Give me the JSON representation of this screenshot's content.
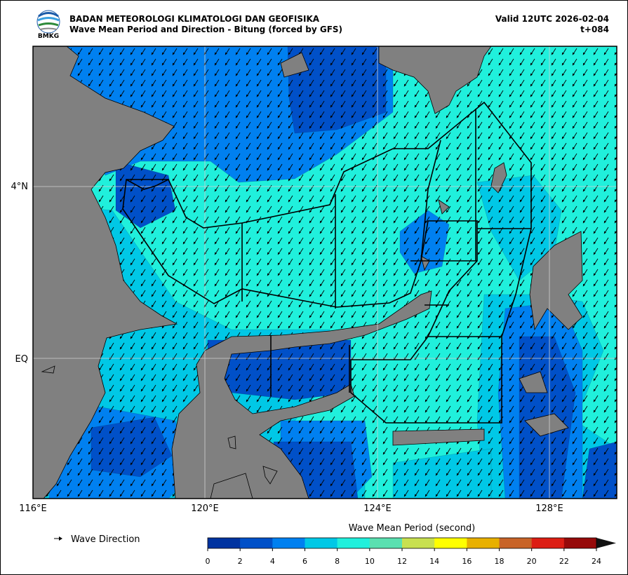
{
  "header": {
    "logo_text": "BMKG",
    "organization": "BADAN METEOROLOGI KLIMATOLOGI DAN GEOFISIKA",
    "title": "Wave Mean Period and Direction - Bitung (forced by GFS)",
    "valid": "Valid 12UTC 2026-02-04",
    "lead_time": "t+084"
  },
  "map": {
    "lat_labels": [
      "4°N",
      "EQ"
    ],
    "lon_labels": [
      "116°E",
      "120°E",
      "124°E",
      "128°E"
    ]
  },
  "legend": {
    "arrow_label": "Wave Direction"
  },
  "colorbar": {
    "title": "Wave Mean Period (second)",
    "ticks": [
      0,
      2,
      4,
      6,
      8,
      10,
      12,
      14,
      16,
      18,
      20,
      22,
      24
    ],
    "colors": [
      "#0033a0",
      "#0050c8",
      "#0080f0",
      "#00c8e6",
      "#20f0dc",
      "#5ae0b0",
      "#c8e050",
      "#ffff00",
      "#e8b000",
      "#c86428",
      "#dc1e14",
      "#960a0a"
    ]
  }
}
